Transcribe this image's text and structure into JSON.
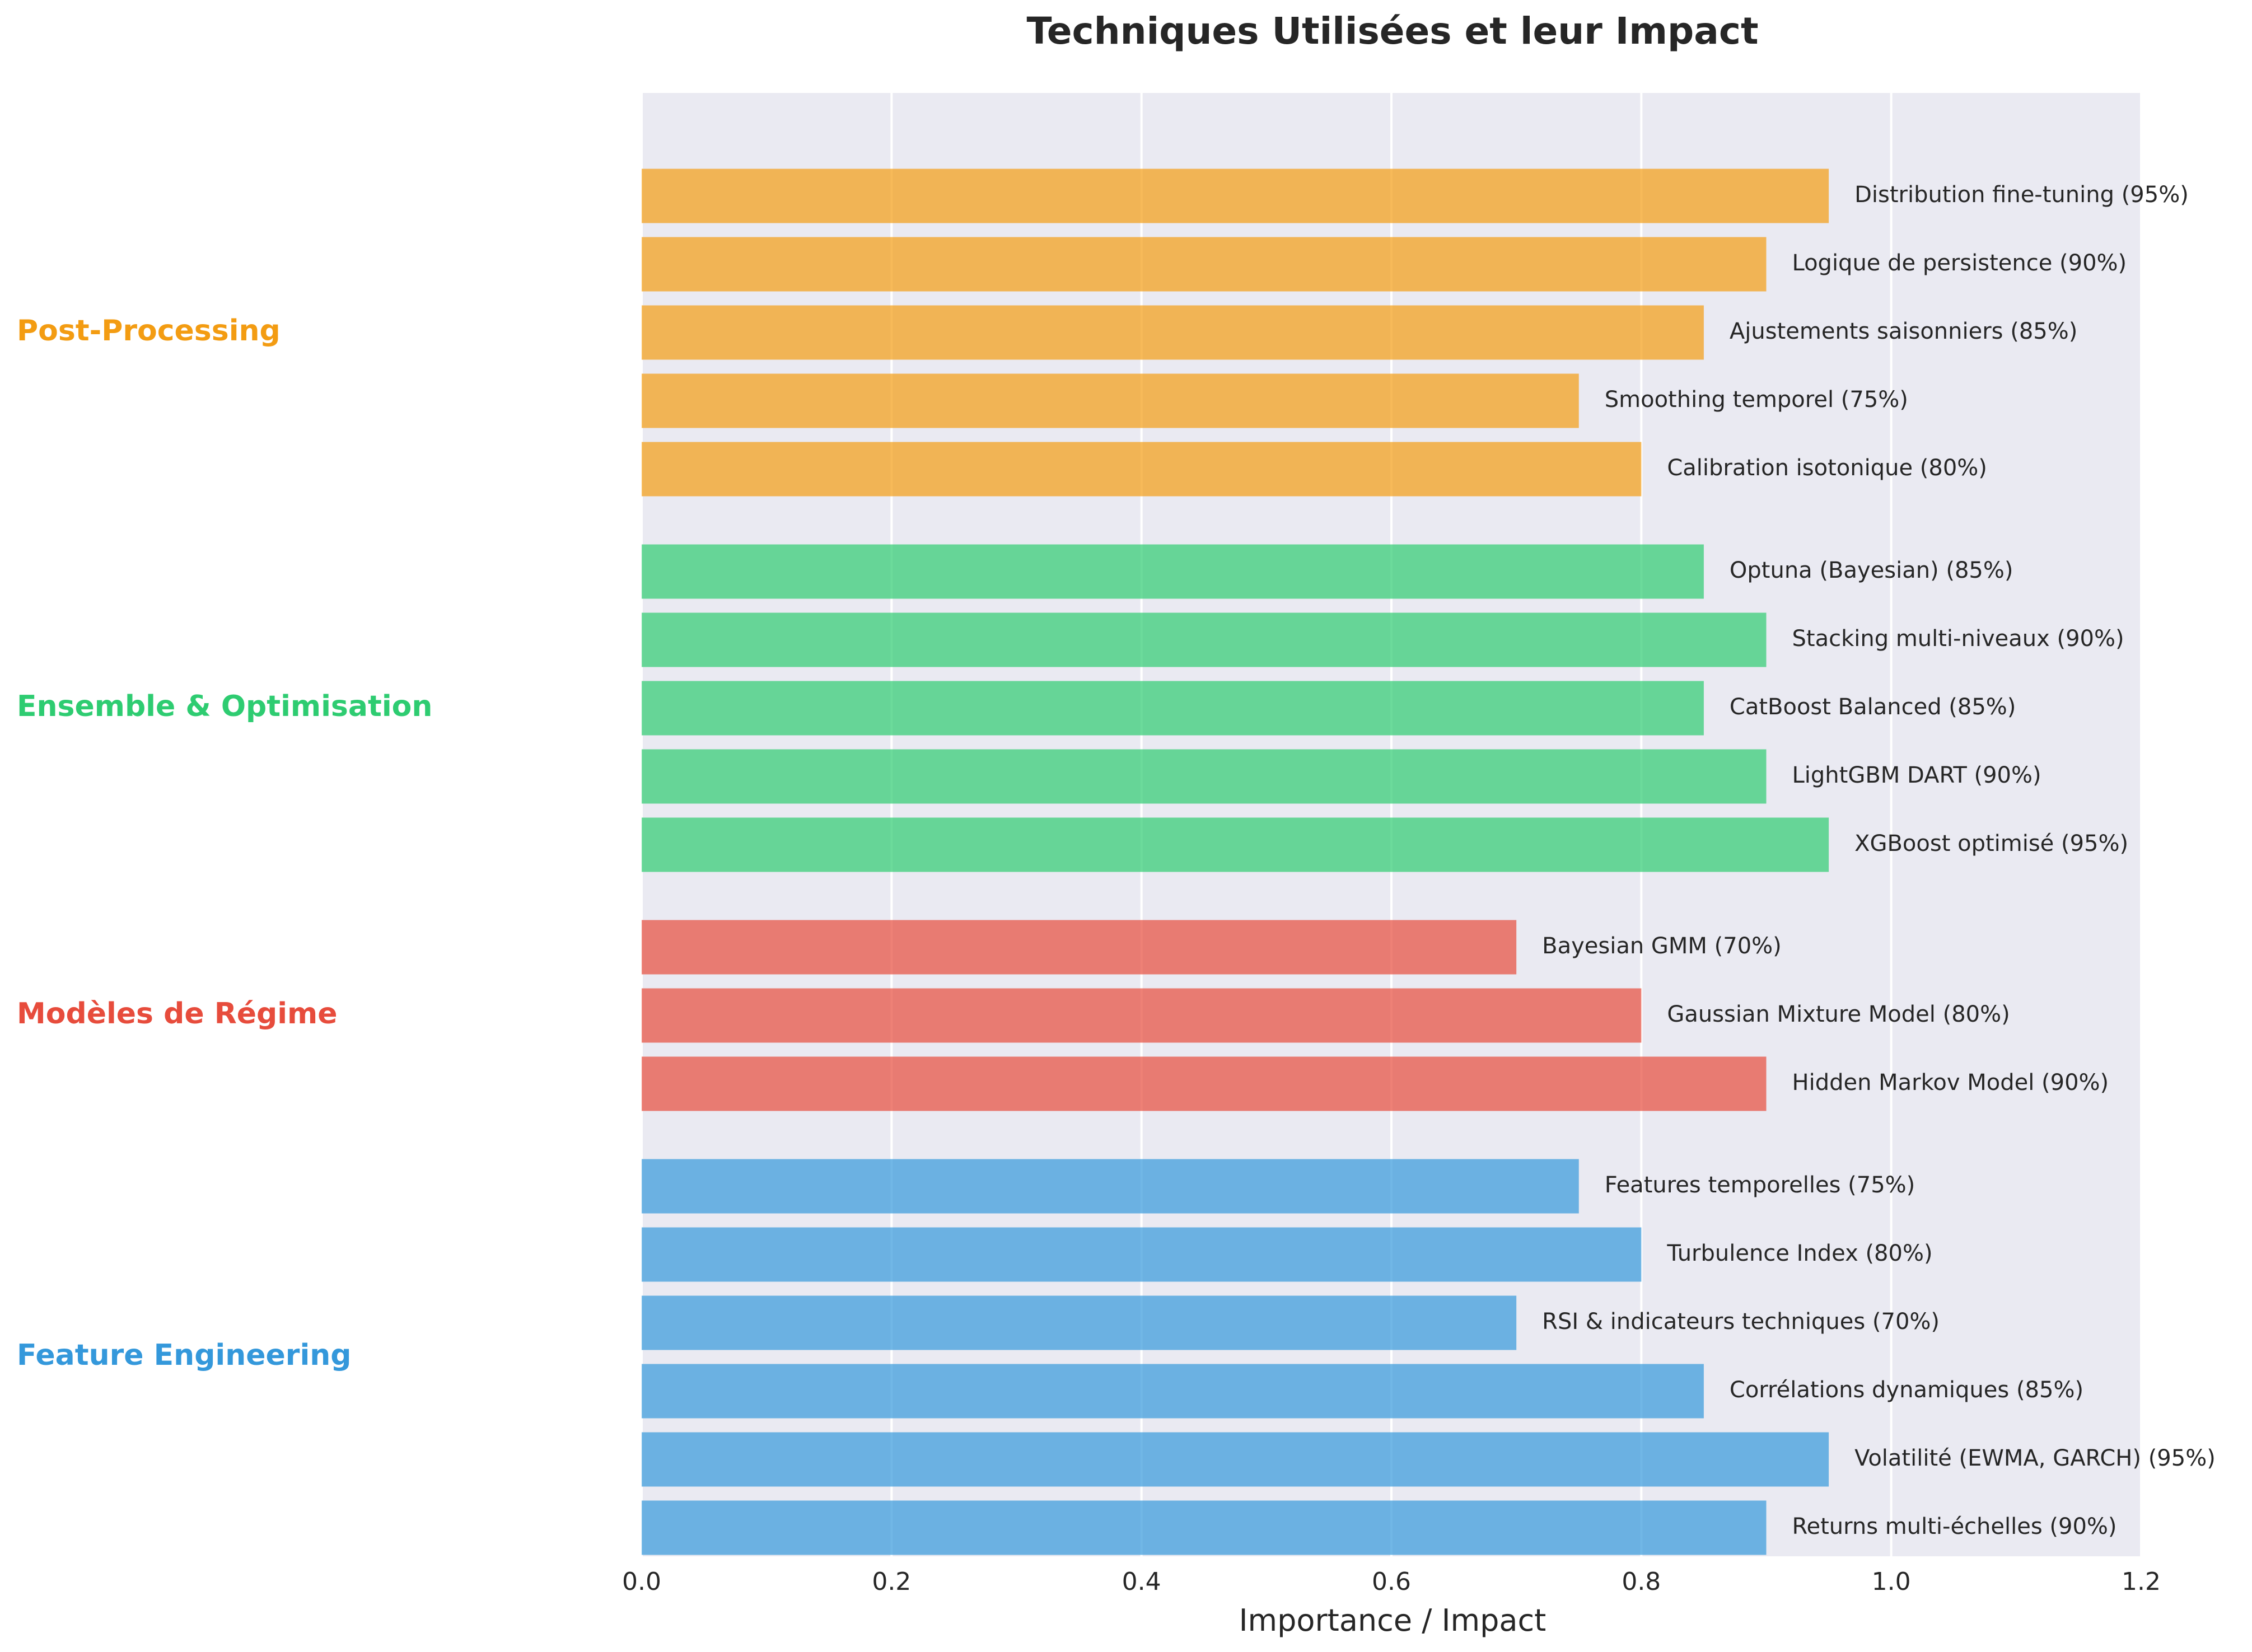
{
  "chart_data": {
    "type": "bar",
    "orientation": "horizontal",
    "title": "Techniques Utilisées et leur Impact",
    "xlabel": "Importance / Impact",
    "ylabel": "",
    "xlim": [
      0,
      1.2
    ],
    "xticks": [
      "0.0",
      "0.2",
      "0.4",
      "0.6",
      "0.8",
      "1.0",
      "1.2"
    ],
    "grid": true,
    "groups": [
      {
        "name": "Post-Processing",
        "color": "#F39C12",
        "items": [
          {
            "label": "Distribution fine-tuning (95%)",
            "value": 0.95
          },
          {
            "label": "Logique de persistence (90%)",
            "value": 0.9
          },
          {
            "label": "Ajustements saisonniers (85%)",
            "value": 0.85
          },
          {
            "label": "Smoothing temporel (75%)",
            "value": 0.75
          },
          {
            "label": "Calibration isotonique (80%)",
            "value": 0.8
          }
        ]
      },
      {
        "name": "Ensemble & Optimisation",
        "color": "#2ECC71",
        "items": [
          {
            "label": "Optuna (Bayesian) (85%)",
            "value": 0.85
          },
          {
            "label": "Stacking multi-niveaux (90%)",
            "value": 0.9
          },
          {
            "label": "CatBoost Balanced (85%)",
            "value": 0.85
          },
          {
            "label": "LightGBM DART (90%)",
            "value": 0.9
          },
          {
            "label": "XGBoost optimisé (95%)",
            "value": 0.95
          }
        ]
      },
      {
        "name": "Modèles de Régime",
        "color": "#E74C3C",
        "items": [
          {
            "label": "Bayesian GMM (70%)",
            "value": 0.7
          },
          {
            "label": "Gaussian Mixture Model (80%)",
            "value": 0.8
          },
          {
            "label": "Hidden Markov Model (90%)",
            "value": 0.9
          }
        ]
      },
      {
        "name": "Feature Engineering",
        "color": "#3498DB",
        "items": [
          {
            "label": "Features temporelles (75%)",
            "value": 0.75
          },
          {
            "label": "Turbulence Index (80%)",
            "value": 0.8
          },
          {
            "label": "RSI & indicateurs techniques (70%)",
            "value": 0.7
          },
          {
            "label": "Corrélations dynamiques (85%)",
            "value": 0.85
          },
          {
            "label": "Volatilité (EWMA, GARCH) (95%)",
            "value": 0.95
          },
          {
            "label": "Returns multi-échelles (90%)",
            "value": 0.9
          }
        ]
      }
    ]
  }
}
